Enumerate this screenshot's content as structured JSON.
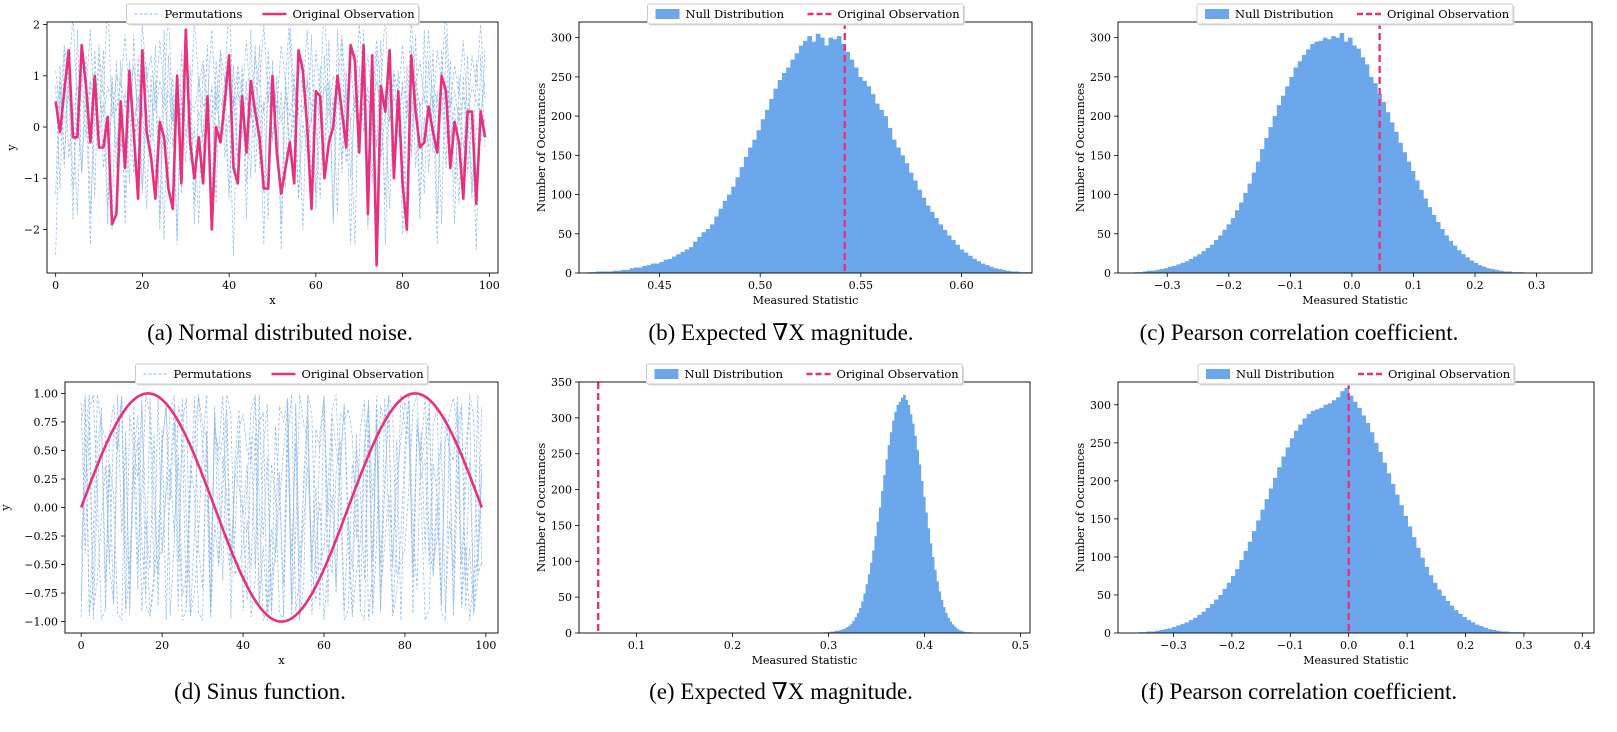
{
  "captions": [
    "(a) Normal distributed noise.",
    "(b) Expected ∇X magnitude.",
    "(c) Pearson correlation coefficient.",
    "(d) Sinus function.",
    "(e) Expected ∇X magnitude.",
    "(f) Pearson correlation coefficient."
  ],
  "colors": {
    "observation": "#e8317e",
    "permutation": "#8fb8ea",
    "histogram": "#6ba7ea",
    "axis": "#000000"
  },
  "chart_data": [
    {
      "id": "a",
      "type": "line",
      "caption": "(a) Normal distributed noise.",
      "xlabel": "x",
      "ylabel": "y",
      "xlim": [
        -2,
        102
      ],
      "ylim": [
        -2.85,
        2.05
      ],
      "xticks": [
        0,
        20,
        40,
        60,
        80,
        100
      ],
      "xtick_labels": [
        "0",
        "20",
        "40",
        "60",
        "80",
        "100"
      ],
      "yticks": [
        -2,
        -1,
        0,
        1,
        2
      ],
      "ytick_labels": [
        "−2",
        "−1",
        "0",
        "1",
        "2"
      ],
      "legend": {
        "position": "top-center",
        "entries": [
          "Permutations",
          "Original Observation"
        ]
      },
      "series": [
        {
          "name": "Permutations",
          "style": "dashed",
          "values_description": "random permutations of the original observation",
          "values": [
            0.8,
            -1.2,
            1.5,
            -0.6,
            0.3,
            -1.7,
            1.1,
            -0.2,
            0.9,
            -1.4,
            1.6,
            -0.8,
            0.1,
            -2.0,
            1.3,
            -0.5,
            0.7,
            -1.1,
            1.8,
            -0.3,
            0.4,
            -1.6,
            1.0,
            -0.9,
            0.2,
            -2.2,
            1.4,
            -0.4,
            0.6,
            -1.3,
            1.7,
            -0.7,
            0.0,
            -1.9,
            1.2,
            -0.1,
            0.8,
            -1.5,
            1.5,
            -0.6,
            0.3,
            -2.5,
            1.1,
            -0.2,
            0.9,
            -1.0,
            1.6,
            -0.8,
            0.5,
            -1.8,
            1.3,
            -0.5,
            0.7,
            -1.2,
            1.9,
            -0.3,
            0.4,
            -2.0,
            1.0,
            -0.9,
            0.2,
            -1.4,
            1.4,
            -0.4,
            0.6,
            -1.7,
            1.7,
            -0.7,
            0.1,
            -2.3,
            1.2,
            -0.1,
            0.8,
            -1.1,
            1.5,
            -0.6,
            0.3,
            -1.6,
            1.1,
            -0.2,
            0.9,
            -2.1,
            1.6,
            -0.8,
            0.5,
            -1.3,
            1.3,
            -0.5,
            0.7,
            -1.9,
            1.8,
            -0.3,
            0.4,
            -1.5,
            1.0,
            -0.9,
            0.2,
            -2.4,
            1.4,
            -0.4
          ]
        },
        {
          "name": "Original Observation",
          "style": "solid",
          "values": [
            0.5,
            -0.1,
            0.7,
            1.5,
            -0.2,
            -0.2,
            1.6,
            0.8,
            -0.3,
            1.0,
            -0.4,
            -0.4,
            0.2,
            -1.9,
            -1.7,
            0.5,
            -0.8,
            1.1,
            -0.1,
            -1.4,
            1.5,
            -0.1,
            -0.6,
            -1.4,
            0.1,
            -0.2,
            -1.2,
            -1.6,
            1.0,
            -1.1,
            1.9,
            -0.3,
            -1.0,
            -0.2,
            -1.1,
            0.6,
            -2.0,
            0.0,
            -0.3,
            0.5,
            1.4,
            -0.8,
            -1.1,
            0.6,
            -0.5,
            0.9,
            0.3,
            -0.2,
            -1.2,
            -1.2,
            1.0,
            -0.5,
            -1.3,
            -0.8,
            -0.3,
            -1.1,
            1.5,
            1.1,
            0.0,
            -1.6,
            0.7,
            0.6,
            -1.0,
            -0.3,
            0.0,
            1.0,
            0.3,
            -0.4,
            1.6,
            1.3,
            -0.5,
            1.6,
            -1.7,
            1.4,
            -2.7,
            0.8,
            0.3,
            1.5,
            -1.0,
            0.7,
            -1.1,
            -2.0,
            1.4,
            0.3,
            -0.4,
            -0.3,
            0.4,
            -0.1,
            -0.5,
            1.0,
            0.7,
            -0.8,
            0.1,
            -0.3,
            -1.4,
            0.3,
            0.3,
            -1.5,
            0.3,
            -0.2
          ]
        }
      ]
    },
    {
      "id": "b",
      "type": "bar",
      "caption": "(b) Expected ∇X magnitude.",
      "xlabel": "Measured Statistic",
      "ylabel": "Number of Occurances",
      "xlim": [
        0.41,
        0.635
      ],
      "ylim": [
        0,
        320
      ],
      "xticks": [
        0.45,
        0.5,
        0.55,
        0.6
      ],
      "xtick_labels": [
        "0.45",
        "0.50",
        "0.55",
        "0.60"
      ],
      "yticks": [
        0,
        50,
        100,
        150,
        200,
        250,
        300
      ],
      "ytick_labels": [
        "0",
        "50",
        "100",
        "150",
        "200",
        "250",
        "300"
      ],
      "legend": {
        "position": "top-center",
        "entries": [
          "Null Distribution",
          "Original Observation"
        ]
      },
      "observation": 0.542,
      "bin_start": 0.41,
      "bin_width": 0.0021,
      "counts": [
        0,
        0,
        1,
        1,
        2,
        2,
        2,
        2,
        3,
        3,
        4,
        4,
        6,
        7,
        7,
        9,
        10,
        12,
        12,
        14,
        17,
        18,
        21,
        24,
        27,
        30,
        33,
        40,
        46,
        52,
        56,
        62,
        72,
        82,
        92,
        100,
        110,
        122,
        135,
        148,
        160,
        170,
        182,
        196,
        208,
        222,
        235,
        246,
        255,
        262,
        272,
        280,
        290,
        296,
        302,
        295,
        305,
        300,
        290,
        300,
        298,
        302,
        292,
        282,
        272,
        262,
        250,
        245,
        238,
        228,
        216,
        208,
        200,
        185,
        170,
        160,
        150,
        140,
        128,
        118,
        106,
        96,
        86,
        78,
        70,
        62,
        55,
        48,
        42,
        36,
        30,
        26,
        22,
        18,
        15,
        12,
        10,
        8,
        6,
        5,
        4,
        3,
        2,
        2,
        1,
        1,
        1,
        0
      ]
    },
    {
      "id": "c",
      "type": "bar",
      "caption": "(c) Pearson correlation coefficient.",
      "xlabel": "Measured Statistic",
      "ylabel": "Number of Occurances",
      "xlim": [
        -0.38,
        0.39
      ],
      "ylim": [
        0,
        320
      ],
      "xticks": [
        -0.3,
        -0.2,
        -0.1,
        0.0,
        0.1,
        0.2,
        0.3
      ],
      "xtick_labels": [
        "−0.3",
        "−0.2",
        "−0.1",
        "0.0",
        "0.1",
        "0.2",
        "0.3"
      ],
      "yticks": [
        0,
        50,
        100,
        150,
        200,
        250,
        300
      ],
      "ytick_labels": [
        "0",
        "50",
        "100",
        "150",
        "200",
        "250",
        "300"
      ],
      "legend": {
        "position": "top-center",
        "entries": [
          "Null Distribution",
          "Original Observation"
        ]
      },
      "observation": 0.045,
      "bin_start": -0.36,
      "bin_width": 0.0068,
      "counts": [
        0,
        1,
        1,
        2,
        3,
        3,
        4,
        5,
        6,
        8,
        9,
        11,
        13,
        15,
        18,
        21,
        24,
        28,
        32,
        36,
        42,
        48,
        55,
        62,
        70,
        80,
        90,
        102,
        114,
        128,
        142,
        158,
        172,
        186,
        200,
        214,
        226,
        238,
        250,
        262,
        270,
        278,
        285,
        292,
        295,
        296,
        300,
        298,
        302,
        300,
        306,
        295,
        300,
        290,
        286,
        275,
        266,
        250,
        242,
        228,
        218,
        205,
        192,
        180,
        166,
        154,
        142,
        130,
        118,
        106,
        95,
        84,
        74,
        65,
        56,
        48,
        41,
        35,
        29,
        24,
        20,
        16,
        13,
        10,
        8,
        6,
        5,
        4,
        3,
        2,
        2,
        1,
        1,
        1,
        0,
        0,
        0,
        0,
        0,
        0,
        0,
        0,
        0,
        0,
        0,
        0
      ]
    },
    {
      "id": "d",
      "type": "line",
      "caption": "(d) Sinus function.",
      "xlabel": "x",
      "ylabel": "y",
      "xlim": [
        -4,
        103
      ],
      "ylim": [
        -1.1,
        1.1
      ],
      "xticks": [
        0,
        20,
        40,
        60,
        80,
        100
      ],
      "xtick_labels": [
        "0",
        "20",
        "40",
        "60",
        "80",
        "100"
      ],
      "yticks": [
        -1.0,
        -0.75,
        -0.5,
        -0.25,
        0.0,
        0.25,
        0.5,
        0.75,
        1.0
      ],
      "ytick_labels": [
        "−1.00",
        "−0.75",
        "−0.50",
        "−0.25",
        "0.00",
        "0.25",
        "0.50",
        "0.75",
        "1.00"
      ],
      "legend": {
        "position": "top-center",
        "entries": [
          "Permutations",
          "Original Observation"
        ]
      },
      "series": [
        {
          "name": "Permutations",
          "style": "dashed",
          "values_description": "random permutations of the sinus observation",
          "values": [
            0.92,
            -0.41,
            0.73,
            -0.98,
            0.15,
            0.88,
            -0.66,
            0.34,
            -0.85,
            0.99,
            -0.22,
            0.58,
            -0.94,
            0.47,
            0.81,
            -0.31,
            -0.77,
            0.96,
            0.05,
            -0.59,
            0.69,
            -0.99,
            0.28,
            0.91,
            -0.48,
            0.62,
            -0.87,
            0.11,
            0.97,
            -0.36,
            -0.71,
            0.54,
            -0.93,
            0.83,
            0.2,
            -0.64,
            0.76,
            -0.97,
            0.4,
            0.86,
            -0.14,
            -0.81,
            0.63,
            -0.52,
            0.99,
            -0.27,
            0.45,
            -0.91,
            0.71,
            0.09,
            -0.68,
            0.94,
            -0.44,
            0.57,
            -0.99,
            0.3,
            0.79,
            -0.56,
            0.18,
            -0.89,
            0.98,
            -0.07,
            0.66,
            -0.75,
            0.38,
            0.9,
            -0.33,
            -0.96,
            0.51,
            0.12,
            -0.63,
            0.95,
            -0.46,
            0.74,
            -0.92,
            0.24,
            0.84,
            -0.53,
            0.6,
            -0.99,
            0.37,
            0.93,
            -0.19,
            -0.72,
            0.67,
            -0.4,
            0.97,
            -0.61,
            0.03,
            -0.86,
            0.78,
            0.49,
            -0.95,
            0.26,
            0.89,
            -0.69,
            0.42,
            -0.82,
            0.99,
            -0.5
          ]
        },
        {
          "name": "Original Observation",
          "style": "solid",
          "values_description": "sin(2πx/66), x = 0..99",
          "x_range": [
            0,
            99
          ],
          "function": "sin(2*pi*x/66)"
        }
      ]
    },
    {
      "id": "e",
      "type": "bar",
      "caption": "(e) Expected ∇X magnitude.",
      "xlabel": "Measured Statistic",
      "ylabel": "Number of Occurances",
      "xlim": [
        0.04,
        0.51
      ],
      "ylim": [
        0,
        350
      ],
      "xticks": [
        0.1,
        0.2,
        0.3,
        0.4,
        0.5
      ],
      "xtick_labels": [
        "0.1",
        "0.2",
        "0.3",
        "0.4",
        "0.5"
      ],
      "yticks": [
        0,
        50,
        100,
        150,
        200,
        250,
        300,
        350
      ],
      "ytick_labels": [
        "0",
        "50",
        "100",
        "150",
        "200",
        "250",
        "300",
        "350"
      ],
      "legend": {
        "position": "top-center",
        "entries": [
          "Null Distribution",
          "Original Observation"
        ]
      },
      "observation": 0.06,
      "bin_start": 0.295,
      "bin_width": 0.0023,
      "counts": [
        1,
        1,
        1,
        2,
        2,
        3,
        3,
        4,
        5,
        6,
        8,
        10,
        13,
        17,
        22,
        28,
        35,
        44,
        55,
        68,
        82,
        98,
        115,
        135,
        155,
        175,
        198,
        220,
        242,
        262,
        280,
        296,
        308,
        318,
        322,
        328,
        332,
        325,
        318,
        305,
        292,
        275,
        255,
        235,
        212,
        190,
        168,
        146,
        125,
        106,
        88,
        72,
        58,
        46,
        36,
        28,
        21,
        16,
        12,
        9,
        6,
        4,
        3,
        2,
        1,
        1,
        1,
        0
      ]
    },
    {
      "id": "f",
      "type": "bar",
      "caption": "(f) Pearson correlation coefficient.",
      "xlabel": "Measured Statistic",
      "ylabel": "Number of Occurances",
      "xlim": [
        -0.395,
        0.42
      ],
      "ylim": [
        0,
        330
      ],
      "xticks": [
        -0.3,
        -0.2,
        -0.1,
        0.0,
        0.1,
        0.2,
        0.3,
        0.4
      ],
      "xtick_labels": [
        "−0.3",
        "−0.2",
        "−0.1",
        "0.0",
        "0.1",
        "0.2",
        "0.3",
        "0.4"
      ],
      "yticks": [
        0,
        50,
        100,
        150,
        200,
        250,
        300
      ],
      "ytick_labels": [
        "0",
        "50",
        "100",
        "150",
        "200",
        "250",
        "300"
      ],
      "legend": {
        "position": "top-center",
        "entries": [
          "Null Distribution",
          "Original Observation"
        ]
      },
      "observation": 0.0,
      "bin_start": -0.36,
      "bin_width": 0.0072,
      "counts": [
        1,
        1,
        2,
        2,
        3,
        4,
        5,
        6,
        8,
        10,
        12,
        14,
        17,
        20,
        24,
        28,
        33,
        38,
        44,
        50,
        58,
        66,
        75,
        84,
        96,
        108,
        120,
        134,
        148,
        162,
        176,
        190,
        204,
        218,
        232,
        244,
        256,
        266,
        274,
        282,
        288,
        292,
        294,
        296,
        300,
        302,
        306,
        310,
        318,
        322,
        312,
        304,
        296,
        286,
        276,
        264,
        250,
        238,
        224,
        210,
        196,
        182,
        168,
        154,
        140,
        126,
        112,
        99,
        87,
        76,
        66,
        57,
        49,
        42,
        36,
        30,
        25,
        21,
        17,
        14,
        11,
        9,
        7,
        5,
        4,
        3,
        2,
        2,
        1,
        1,
        1,
        1,
        0,
        0,
        0,
        0,
        0,
        0,
        0,
        0,
        0,
        0,
        0,
        0,
        0,
        0,
        0,
        0,
        0,
        0,
        0,
        0,
        0
      ]
    }
  ]
}
